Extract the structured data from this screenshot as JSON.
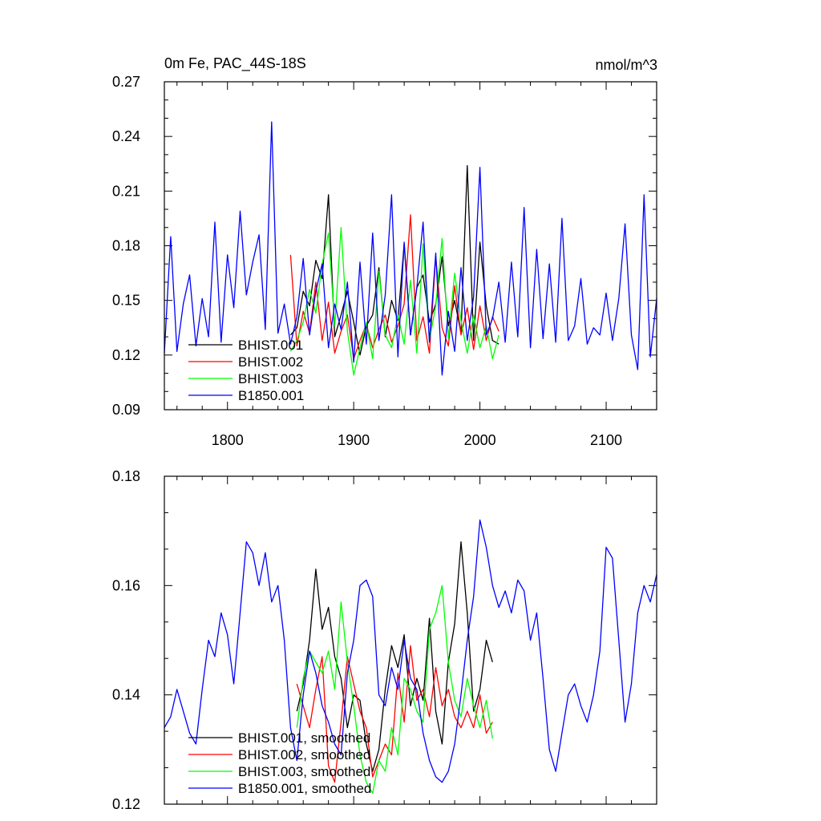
{
  "colors": {
    "BHIST.001": "#000000",
    "BHIST.002": "#ff0000",
    "BHIST.003": "#00ff00",
    "B1850.001": "#0000ff"
  },
  "chart_data": [
    {
      "type": "line",
      "title": "0m Fe, PAC_44S-18S",
      "units": "nmol/m^3",
      "xlim": [
        1750,
        2140
      ],
      "ylim": [
        0.09,
        0.27
      ],
      "x_ticks": [
        1800,
        1900,
        2000,
        2100
      ],
      "x_tick_labels": [
        "1800",
        "1900",
        "2000",
        "2100"
      ],
      "y_ticks": [
        0.09,
        0.12,
        0.15,
        0.18,
        0.21,
        0.24,
        0.27
      ],
      "y_tick_labels": [
        "0.09",
        "0.12",
        "0.15",
        "0.18",
        "0.21",
        "0.24",
        "0.27"
      ],
      "legend_position": "bottom-left",
      "series": [
        {
          "name": "BHIST.001",
          "color": "#000000",
          "x": [
            1850,
            1855,
            1860,
            1865,
            1870,
            1875,
            1880,
            1885,
            1890,
            1895,
            1900,
            1905,
            1910,
            1915,
            1920,
            1925,
            1930,
            1935,
            1940,
            1945,
            1950,
            1955,
            1960,
            1965,
            1970,
            1975,
            1980,
            1985,
            1990,
            1995,
            2000,
            2005,
            2010,
            2015
          ],
          "y": [
            0.131,
            0.135,
            0.155,
            0.147,
            0.172,
            0.162,
            0.208,
            0.13,
            0.142,
            0.155,
            0.138,
            0.12,
            0.136,
            0.142,
            0.168,
            0.13,
            0.15,
            0.139,
            0.181,
            0.131,
            0.157,
            0.164,
            0.138,
            0.148,
            0.174,
            0.136,
            0.15,
            0.132,
            0.224,
            0.128,
            0.182,
            0.147,
            0.128,
            0.126
          ]
        },
        {
          "name": "BHIST.002",
          "color": "#ff0000",
          "x": [
            1850,
            1855,
            1860,
            1865,
            1870,
            1875,
            1880,
            1885,
            1890,
            1895,
            1900,
            1905,
            1910,
            1915,
            1920,
            1925,
            1930,
            1935,
            1940,
            1945,
            1950,
            1955,
            1960,
            1965,
            1970,
            1975,
            1980,
            1985,
            1990,
            1995,
            2000,
            2005,
            2010,
            2015
          ],
          "y": [
            0.175,
            0.125,
            0.144,
            0.132,
            0.16,
            0.128,
            0.149,
            0.121,
            0.133,
            0.142,
            0.118,
            0.128,
            0.137,
            0.124,
            0.134,
            0.142,
            0.127,
            0.136,
            0.148,
            0.197,
            0.128,
            0.141,
            0.121,
            0.174,
            0.135,
            0.125,
            0.158,
            0.131,
            0.146,
            0.123,
            0.147,
            0.128,
            0.141,
            0.133
          ]
        },
        {
          "name": "BHIST.003",
          "color": "#00ff00",
          "x": [
            1850,
            1855,
            1860,
            1865,
            1870,
            1875,
            1880,
            1885,
            1890,
            1895,
            1900,
            1905,
            1910,
            1915,
            1920,
            1925,
            1930,
            1935,
            1940,
            1945,
            1950,
            1955,
            1960,
            1965,
            1970,
            1975,
            1980,
            1985,
            1990,
            1995,
            2000,
            2005,
            2010,
            2015
          ],
          "y": [
            0.122,
            0.128,
            0.138,
            0.156,
            0.143,
            0.17,
            0.187,
            0.136,
            0.19,
            0.133,
            0.109,
            0.124,
            0.138,
            0.118,
            0.166,
            0.131,
            0.124,
            0.142,
            0.126,
            0.161,
            0.121,
            0.181,
            0.128,
            0.147,
            0.184,
            0.129,
            0.165,
            0.139,
            0.121,
            0.142,
            0.124,
            0.136,
            0.118,
            0.131
          ]
        },
        {
          "name": "B1850.001",
          "color": "#0000ff",
          "x": [
            1750,
            1755,
            1760,
            1765,
            1770,
            1775,
            1780,
            1785,
            1790,
            1795,
            1800,
            1805,
            1810,
            1815,
            1820,
            1825,
            1830,
            1835,
            1840,
            1845,
            1850,
            1855,
            1860,
            1865,
            1870,
            1875,
            1880,
            1885,
            1890,
            1895,
            1900,
            1905,
            1910,
            1915,
            1920,
            1925,
            1930,
            1935,
            1940,
            1945,
            1950,
            1955,
            1960,
            1965,
            1970,
            1975,
            1980,
            1985,
            1990,
            1995,
            2000,
            2005,
            2010,
            2015,
            2020,
            2025,
            2030,
            2035,
            2040,
            2045,
            2050,
            2055,
            2060,
            2065,
            2070,
            2075,
            2080,
            2085,
            2090,
            2095,
            2100,
            2105,
            2110,
            2115,
            2120,
            2125,
            2130,
            2135,
            2140
          ],
          "y": [
            0.121,
            0.185,
            0.122,
            0.148,
            0.164,
            0.125,
            0.151,
            0.13,
            0.193,
            0.127,
            0.175,
            0.146,
            0.199,
            0.153,
            0.171,
            0.186,
            0.134,
            0.248,
            0.132,
            0.148,
            0.126,
            0.141,
            0.173,
            0.131,
            0.155,
            0.17,
            0.124,
            0.148,
            0.134,
            0.16,
            0.116,
            0.171,
            0.126,
            0.187,
            0.128,
            0.153,
            0.208,
            0.119,
            0.182,
            0.131,
            0.157,
            0.193,
            0.127,
            0.176,
            0.109,
            0.144,
            0.122,
            0.168,
            0.128,
            0.152,
            0.223,
            0.131,
            0.14,
            0.16,
            0.127,
            0.171,
            0.13,
            0.201,
            0.124,
            0.178,
            0.129,
            0.17,
            0.127,
            0.195,
            0.128,
            0.136,
            0.162,
            0.126,
            0.135,
            0.131,
            0.154,
            0.128,
            0.151,
            0.192,
            0.131,
            0.112,
            0.208,
            0.119,
            0.151
          ]
        }
      ]
    },
    {
      "type": "line",
      "title": "",
      "units": "",
      "xlim": [
        1750,
        2140
      ],
      "ylim": [
        0.12,
        0.18
      ],
      "x_ticks": [
        1800,
        1900,
        2000,
        2100
      ],
      "x_tick_labels": [],
      "y_ticks": [
        0.12,
        0.14,
        0.16,
        0.18
      ],
      "y_tick_labels": [
        "0.12",
        "0.14",
        "0.16",
        "0.18"
      ],
      "legend_position": "bottom-left",
      "series": [
        {
          "name": "BHIST.001, smoothed",
          "color": "#000000",
          "x": [
            1855,
            1860,
            1865,
            1870,
            1875,
            1880,
            1885,
            1890,
            1895,
            1900,
            1905,
            1910,
            1915,
            1920,
            1925,
            1930,
            1935,
            1940,
            1945,
            1950,
            1955,
            1960,
            1965,
            1970,
            1975,
            1980,
            1985,
            1990,
            1995,
            2000,
            2005,
            2010
          ],
          "y": [
            0.137,
            0.142,
            0.15,
            0.163,
            0.152,
            0.156,
            0.147,
            0.143,
            0.134,
            0.14,
            0.139,
            0.131,
            0.126,
            0.13,
            0.141,
            0.149,
            0.145,
            0.151,
            0.138,
            0.143,
            0.139,
            0.154,
            0.137,
            0.131,
            0.146,
            0.153,
            0.168,
            0.155,
            0.137,
            0.141,
            0.15,
            0.146
          ]
        },
        {
          "name": "BHIST.002, smoothed",
          "color": "#ff0000",
          "x": [
            1855,
            1860,
            1865,
            1870,
            1875,
            1880,
            1885,
            1890,
            1895,
            1900,
            1905,
            1910,
            1915,
            1920,
            1925,
            1930,
            1935,
            1940,
            1945,
            1950,
            1955,
            1960,
            1965,
            1970,
            1975,
            1980,
            1985,
            1990,
            1995,
            2000,
            2005,
            2010
          ],
          "y": [
            0.142,
            0.138,
            0.134,
            0.141,
            0.147,
            0.127,
            0.124,
            0.135,
            0.147,
            0.142,
            0.137,
            0.134,
            0.125,
            0.128,
            0.131,
            0.129,
            0.144,
            0.135,
            0.149,
            0.139,
            0.141,
            0.136,
            0.145,
            0.138,
            0.141,
            0.136,
            0.134,
            0.137,
            0.134,
            0.14,
            0.133,
            0.135
          ]
        },
        {
          "name": "BHIST.003, smoothed",
          "color": "#00ff00",
          "x": [
            1855,
            1860,
            1865,
            1870,
            1875,
            1880,
            1885,
            1890,
            1895,
            1900,
            1905,
            1910,
            1915,
            1920,
            1925,
            1930,
            1935,
            1940,
            1945,
            1950,
            1955,
            1960,
            1965,
            1970,
            1975,
            1980,
            1985,
            1990,
            1995,
            2000,
            2005,
            2010
          ],
          "y": [
            0.134,
            0.143,
            0.148,
            0.146,
            0.144,
            0.148,
            0.141,
            0.157,
            0.146,
            0.138,
            0.129,
            0.124,
            0.122,
            0.128,
            0.126,
            0.134,
            0.129,
            0.143,
            0.141,
            0.137,
            0.135,
            0.152,
            0.155,
            0.16,
            0.146,
            0.139,
            0.136,
            0.143,
            0.138,
            0.134,
            0.139,
            0.132
          ]
        },
        {
          "name": "B1850.001, smoothed",
          "color": "#0000ff",
          "x": [
            1750,
            1755,
            1760,
            1765,
            1770,
            1775,
            1780,
            1785,
            1790,
            1795,
            1800,
            1805,
            1810,
            1815,
            1820,
            1825,
            1830,
            1835,
            1840,
            1845,
            1850,
            1855,
            1860,
            1865,
            1870,
            1875,
            1880,
            1885,
            1890,
            1895,
            1900,
            1905,
            1910,
            1915,
            1920,
            1925,
            1930,
            1935,
            1940,
            1945,
            1950,
            1955,
            1960,
            1965,
            1970,
            1975,
            1980,
            1985,
            1990,
            1995,
            2000,
            2005,
            2010,
            2015,
            2020,
            2025,
            2030,
            2035,
            2040,
            2045,
            2050,
            2055,
            2060,
            2065,
            2070,
            2075,
            2080,
            2085,
            2090,
            2095,
            2100,
            2105,
            2110,
            2115,
            2120,
            2125,
            2130,
            2135,
            2140
          ],
          "y": [
            0.134,
            0.136,
            0.141,
            0.137,
            0.133,
            0.131,
            0.141,
            0.15,
            0.147,
            0.155,
            0.151,
            0.142,
            0.155,
            0.168,
            0.166,
            0.16,
            0.166,
            0.157,
            0.16,
            0.15,
            0.134,
            0.128,
            0.14,
            0.148,
            0.144,
            0.138,
            0.135,
            0.131,
            0.129,
            0.144,
            0.15,
            0.16,
            0.161,
            0.158,
            0.14,
            0.138,
            0.145,
            0.141,
            0.15,
            0.143,
            0.141,
            0.133,
            0.128,
            0.125,
            0.124,
            0.126,
            0.131,
            0.14,
            0.15,
            0.158,
            0.172,
            0.167,
            0.16,
            0.156,
            0.159,
            0.155,
            0.161,
            0.159,
            0.15,
            0.155,
            0.143,
            0.13,
            0.126,
            0.133,
            0.14,
            0.142,
            0.138,
            0.135,
            0.14,
            0.148,
            0.167,
            0.165,
            0.15,
            0.135,
            0.142,
            0.155,
            0.16,
            0.157,
            0.162
          ]
        }
      ]
    }
  ]
}
